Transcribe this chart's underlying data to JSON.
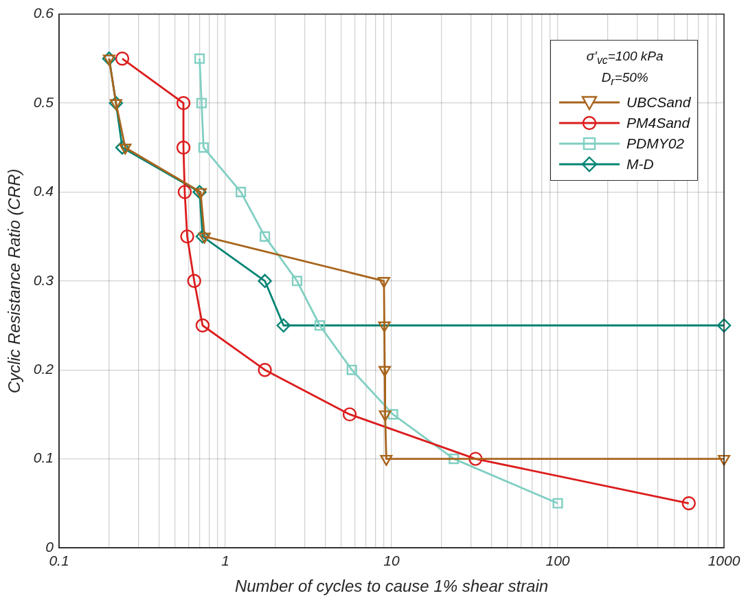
{
  "chart_data": {
    "type": "line",
    "xlabel": "Number of cycles to cause 1% shear strain",
    "ylabel": "Cyclic Resistance Ratio (CRR)",
    "legend_title": "σ′$_{vc}$=100 kPa\nD$_{r}$=50%",
    "log": "x",
    "grid": true,
    "legend": "top right",
    "line_style": "solid",
    "xlim": [
      0.1,
      1000
    ],
    "ylim": [
      0,
      0.6
    ],
    "xticks": [
      {
        "value": 0.1,
        "label": "0.1"
      },
      {
        "value": 0.2,
        "label": null
      },
      {
        "value": 0.3,
        "label": null
      },
      {
        "value": 0.4,
        "label": null
      },
      {
        "value": 0.5,
        "label": null
      },
      {
        "value": 0.6,
        "label": null
      },
      {
        "value": 0.7,
        "label": null
      },
      {
        "value": 0.8,
        "label": null
      },
      {
        "value": 0.9,
        "label": null
      },
      1,
      {
        "value": 2,
        "label": null
      },
      {
        "value": 3,
        "label": null
      },
      {
        "value": 4,
        "label": null
      },
      {
        "value": 5,
        "label": null
      },
      {
        "value": 6,
        "label": null
      },
      {
        "value": 7,
        "label": null
      },
      {
        "value": 8,
        "label": null
      },
      {
        "value": 9,
        "label": null
      },
      10,
      {
        "value": 20,
        "label": null
      },
      {
        "value": 30,
        "label": null
      },
      {
        "value": 40,
        "label": null
      },
      {
        "value": 50,
        "label": null
      },
      {
        "value": 60,
        "label": null
      },
      {
        "value": 70,
        "label": null
      },
      {
        "value": 80,
        "label": null
      },
      {
        "value": 90,
        "label": null
      },
      100,
      {
        "value": 200,
        "label": null
      },
      {
        "value": 300,
        "label": null
      },
      {
        "value": 400,
        "label": null
      },
      {
        "value": 500,
        "label": null
      },
      {
        "value": 600,
        "label": null
      },
      {
        "value": 700,
        "label": null
      },
      {
        "value": 800,
        "label": null
      },
      {
        "value": 900,
        "label": null
      },
      1000
    ],
    "yticks": [
      0,
      0.1,
      0.2,
      0.3,
      0.4,
      0.5,
      0.6
    ],
    "series": [
      {
        "name": "UBCSand",
        "color": "#a8641c",
        "marker": "triangle",
        "x": [
          0.2,
          0.22,
          0.25,
          0.71,
          0.75,
          9,
          9.05,
          9.1,
          9.15,
          9.3,
          1000
        ],
        "values": [
          0.55,
          0.5,
          0.45,
          0.4,
          0.35,
          0.3,
          0.25,
          0.2,
          0.15,
          0.1,
          0.1
        ]
      },
      {
        "name": "PM4Sand",
        "color": "#dc1c1c",
        "marker": "circle",
        "x": [
          0.24,
          0.56,
          0.56,
          0.57,
          0.59,
          0.65,
          0.73,
          1.73,
          5.6,
          32,
          614
        ],
        "values": [
          0.55,
          0.5,
          0.45,
          0.4,
          0.35,
          0.3,
          0.25,
          0.2,
          0.15,
          0.1,
          0.05
        ]
      },
      {
        "name": "PDMY02",
        "color": "#80cfc2",
        "marker": "square",
        "x": [
          0.7,
          0.72,
          0.74,
          1.24,
          1.73,
          2.7,
          3.7,
          5.77,
          10.2,
          23.7,
          100
        ],
        "values": [
          0.55,
          0.5,
          0.45,
          0.4,
          0.35,
          0.3,
          0.25,
          0.2,
          0.15,
          0.1,
          0.05
        ]
      },
      {
        "name": "M-D",
        "color": "#028474",
        "marker": "diamond",
        "x": [
          0.2,
          0.22,
          0.24,
          0.7,
          0.73,
          1.73,
          2.24,
          1000
        ],
        "values": [
          0.55,
          0.5,
          0.45,
          0.4,
          0.35,
          0.3,
          0.25,
          0.25
        ]
      }
    ]
  }
}
